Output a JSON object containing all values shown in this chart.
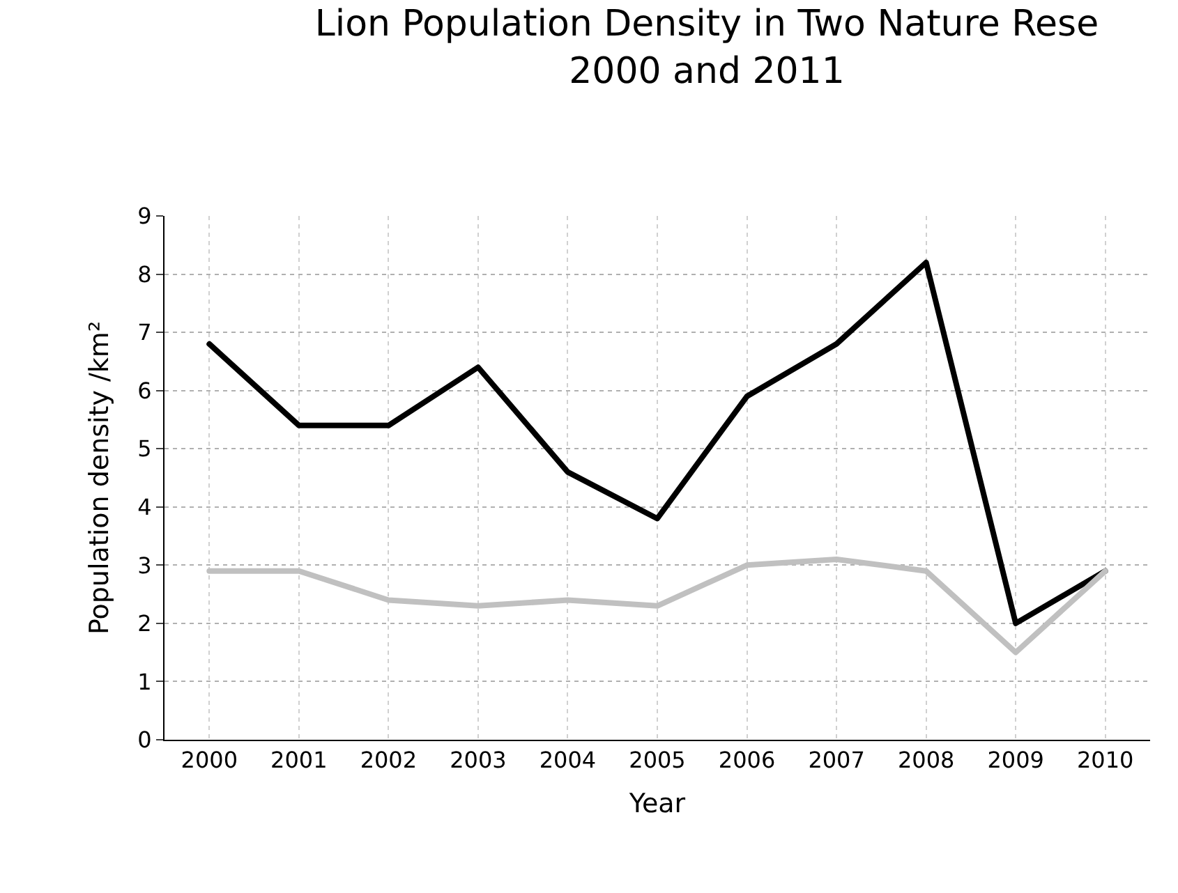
{
  "chart_data": {
    "type": "line",
    "title": "Lion Population Density in Two Nature Rese\n2000 and 2011",
    "xlabel": "Year",
    "ylabel": "Population density /km²",
    "categories": [
      "2000",
      "2001",
      "2002",
      "2003",
      "2004",
      "2005",
      "2006",
      "2007",
      "2008",
      "2009",
      "2010"
    ],
    "series": [
      {
        "color": "#000000",
        "values": [
          6.8,
          5.4,
          5.4,
          6.4,
          4.6,
          3.8,
          5.9,
          6.8,
          8.2,
          2.0,
          2.9
        ]
      },
      {
        "color": "#c0c0c0",
        "values": [
          2.9,
          2.9,
          2.4,
          2.3,
          2.4,
          2.3,
          3.0,
          3.1,
          2.9,
          1.5,
          2.9
        ]
      }
    ],
    "ylim": [
      0,
      9
    ],
    "yticks": [
      0,
      1,
      2,
      3,
      4,
      5,
      6,
      7,
      8,
      9
    ],
    "grid": true,
    "line_style": "solid",
    "marker": "none"
  }
}
